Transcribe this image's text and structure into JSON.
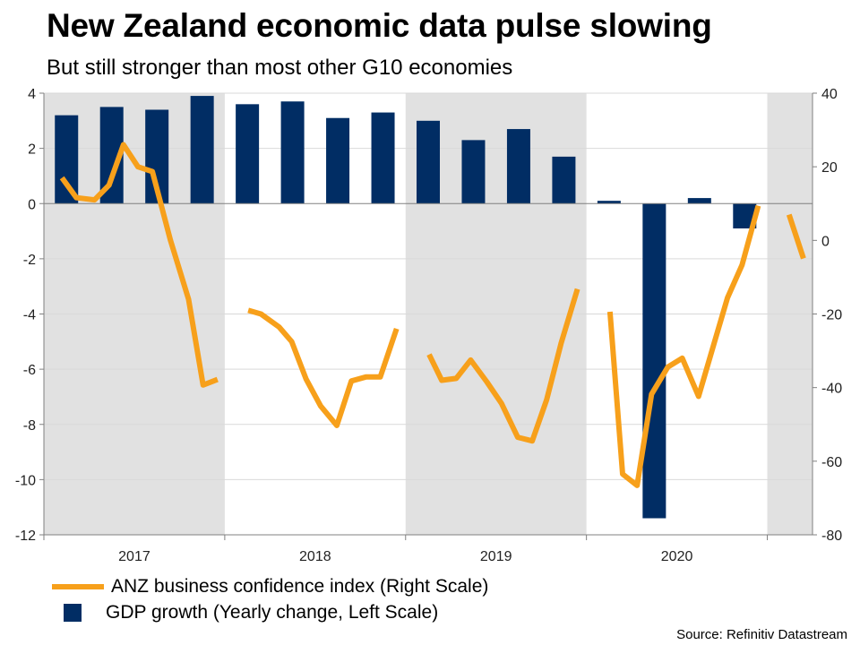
{
  "title": "New Zealand economic data pulse slowing",
  "subtitle": "But still stronger than most other G10 economies",
  "source": "Source: Refinitiv Datastream",
  "colors": {
    "line": "#f7a01b",
    "bar": "#012d64",
    "shade": "#e1e1e1",
    "grid": "#d9d9d9",
    "axis": "#808080"
  },
  "legend": {
    "line_label": "ANZ business confidence index (Right Scale)",
    "bar_label": "GDP growth (Yearly change, Left Scale)"
  },
  "chart_data": {
    "type": "bar+line",
    "x_labels": [
      "2017",
      "2018",
      "2019",
      "2020"
    ],
    "x_range": [
      2017,
      2021.25
    ],
    "shaded_periods": [
      [
        2017,
        2018
      ],
      [
        2019,
        2020
      ],
      [
        2021,
        2021.25
      ]
    ],
    "left_axis": {
      "min": -12,
      "max": 4,
      "ticks": [
        4,
        2,
        0,
        -2,
        -4,
        -6,
        -8,
        -10,
        -12
      ]
    },
    "right_axis": {
      "min": -80,
      "max": 40,
      "ticks": [
        40,
        20,
        0,
        -20,
        -40,
        -60,
        -80
      ]
    },
    "bars": {
      "name": "GDP growth (Yearly change, Left Scale)",
      "axis": "left",
      "x": [
        2017.125,
        2017.375,
        2017.625,
        2017.875,
        2018.125,
        2018.375,
        2018.625,
        2018.875,
        2019.125,
        2019.375,
        2019.625,
        2019.875,
        2020.125,
        2020.375,
        2020.625,
        2020.875
      ],
      "values": [
        3.2,
        3.5,
        3.4,
        3.9,
        3.6,
        3.7,
        3.1,
        3.3,
        3.0,
        2.3,
        2.7,
        1.7,
        0.1,
        -11.4,
        0.2,
        -0.9
      ]
    },
    "line": {
      "name": "ANZ business confidence index (Right Scale)",
      "axis": "right",
      "segments": [
        {
          "x": [
            2017.1,
            2017.18,
            2017.28,
            2017.36,
            2017.44,
            2017.52,
            2017.6,
            2017.7,
            2017.8,
            2017.88,
            2017.96
          ],
          "y": [
            17,
            11.6,
            11,
            15,
            26,
            20,
            18.7,
            0,
            -16,
            -39.3,
            -37.8
          ]
        },
        {
          "x": [
            2018.13,
            2018.2,
            2018.3,
            2018.37,
            2018.45,
            2018.53,
            2018.62,
            2018.7,
            2018.78,
            2018.86,
            2018.95
          ],
          "y": [
            -19,
            -20,
            -23.5,
            -27.5,
            -37.7,
            -45,
            -50.3,
            -38.2,
            -37.1,
            -37.1,
            -24
          ]
        },
        {
          "x": [
            2019.13,
            2019.2,
            2019.28,
            2019.36,
            2019.45,
            2019.53,
            2019.62,
            2019.7,
            2019.78,
            2019.86,
            2019.95
          ],
          "y": [
            -31,
            -38,
            -37.5,
            -32.5,
            -38.5,
            -44.3,
            -53.5,
            -54.5,
            -43.3,
            -27.9,
            -13.2
          ]
        },
        {
          "x": [
            2020.13,
            2020.2,
            2020.28,
            2020.36,
            2020.45,
            2020.53,
            2020.62,
            2020.7,
            2020.78,
            2020.86,
            2020.95
          ],
          "y": [
            -19.4,
            -63.5,
            -66.6,
            -41.8,
            -34.4,
            -32,
            -42.4,
            -28.9,
            -15.6,
            -6.7,
            9.4
          ]
        },
        {
          "x": [
            2021.12,
            2021.2
          ],
          "y": [
            7,
            -4.9
          ]
        }
      ]
    }
  }
}
